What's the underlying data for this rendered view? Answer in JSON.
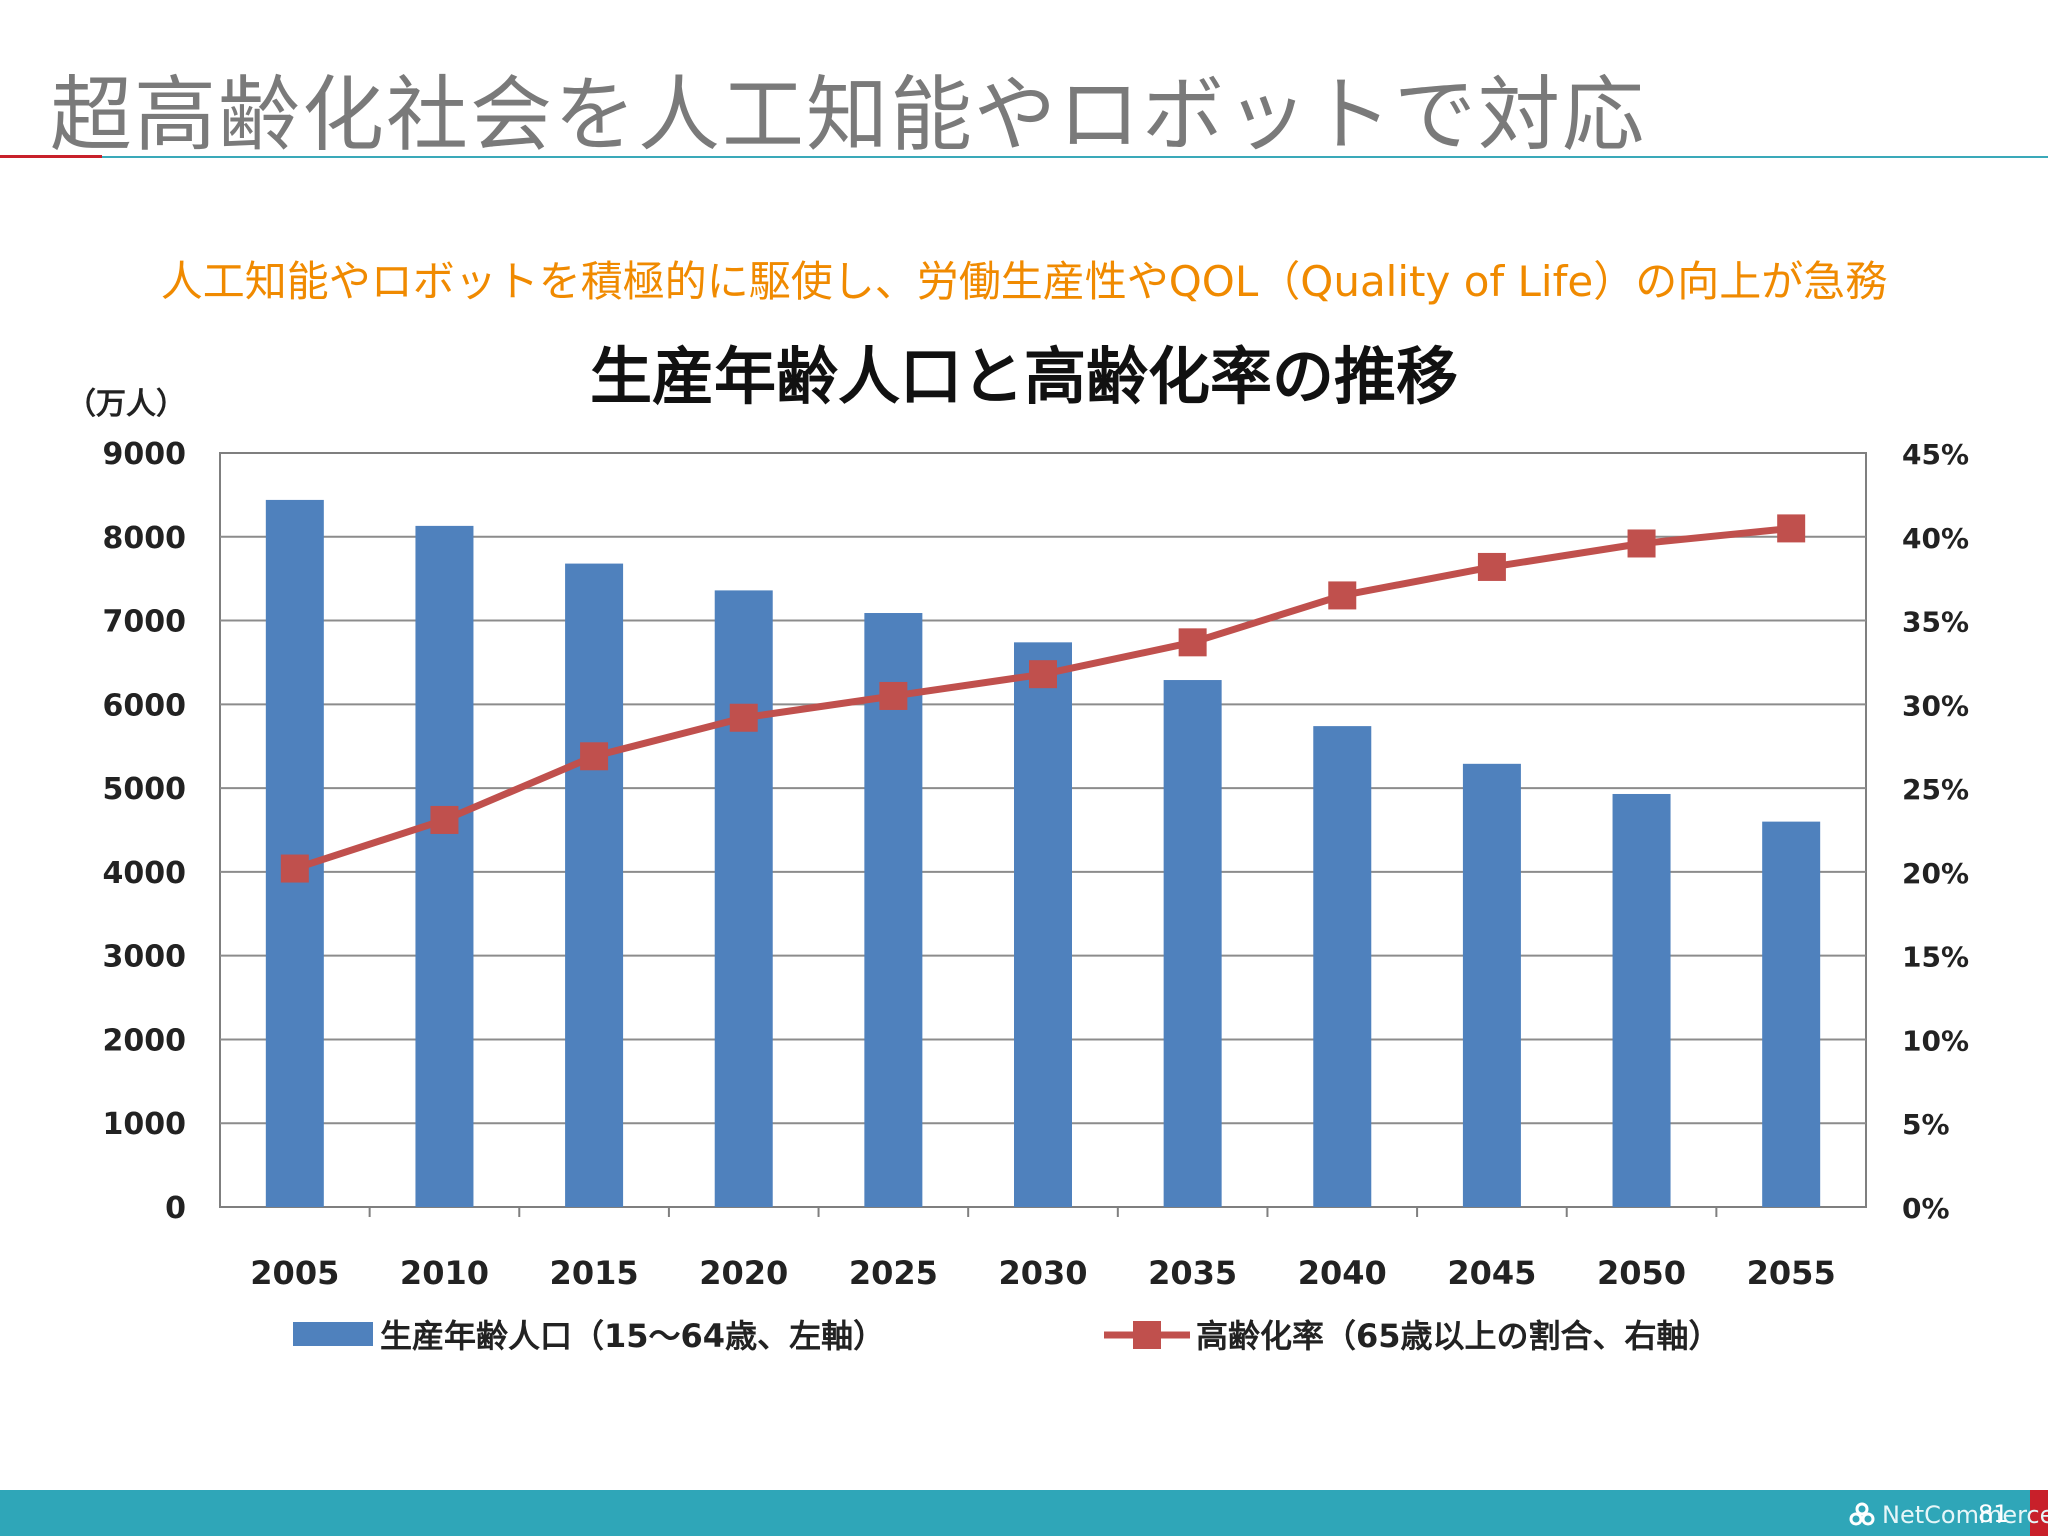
{
  "slide": {
    "title": "超高齢化社会を人工知能やロボットで対応",
    "subtitle": "人工知能やロボットを積極的に駆使し、労働生産性やQOL（Quality of Life）の向上が急務",
    "footer_logo": "NetCommerce",
    "page_number": "81"
  },
  "colors": {
    "bar": "#4f81bd",
    "line": "#c0504d",
    "accent_orange": "#f08a00",
    "footer_teal": "#2fa6b8",
    "title_gray": "#7a7a7a"
  },
  "chart_data": {
    "type": "bar+line",
    "title": "生産年齢人口と高齢化率の推移",
    "y_left_label": "（万人）",
    "categories": [
      "2005",
      "2010",
      "2015",
      "2020",
      "2025",
      "2030",
      "2035",
      "2040",
      "2045",
      "2050",
      "2055"
    ],
    "y_left_ticks": [
      "0",
      "1000",
      "2000",
      "3000",
      "4000",
      "5000",
      "6000",
      "7000",
      "8000",
      "9000"
    ],
    "y_right_ticks": [
      "0%",
      "5%",
      "10%",
      "15%",
      "20%",
      "25%",
      "30%",
      "35%",
      "40%",
      "45%"
    ],
    "y_left_range": [
      0,
      9000
    ],
    "y_right_range": [
      0,
      45
    ],
    "grid": true,
    "legend_position": "bottom",
    "series": [
      {
        "name": "生産年齢人口（15〜64歳、左軸）",
        "type": "bar",
        "axis": "left",
        "values": [
          8440,
          8130,
          7680,
          7360,
          7090,
          6740,
          6290,
          5740,
          5290,
          4930,
          4600
        ]
      },
      {
        "name": "高齢化率（65歳以上の割合、右軸）",
        "type": "line",
        "axis": "right",
        "values": [
          20.2,
          23.1,
          26.9,
          29.2,
          30.5,
          31.8,
          33.7,
          36.5,
          38.2,
          39.6,
          40.5
        ]
      }
    ]
  }
}
